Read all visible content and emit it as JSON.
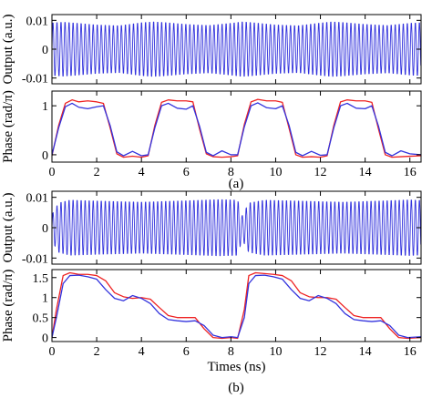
{
  "figure": {
    "captions": [
      "(a)",
      "(b)"
    ]
  },
  "chart_data": [
    {
      "type": "line",
      "panel": "(a)",
      "subplot": "output",
      "ylabel": "Output (a.u.)",
      "xlim": [
        0,
        16.5
      ],
      "ylim": [
        -0.012,
        0.012
      ],
      "yticks": [
        -0.01,
        0,
        0.01
      ],
      "ytick_labels": [
        "-0.01",
        "0",
        "0.01"
      ],
      "grid": false,
      "series": [
        {
          "color": "#3333dd",
          "waveform": "oscillation",
          "carrier_period_ns": 0.18,
          "amplitude_envelope": {
            "x": [
              0,
              0.5,
              1,
              2,
              3,
              4,
              4.5,
              5,
              6,
              7,
              8,
              8.5,
              9,
              10,
              11,
              12,
              12.5,
              13,
              14,
              15,
              16,
              16.5
            ],
            "y": [
              0.0095,
              0.0098,
              0.0095,
              0.0088,
              0.0085,
              0.0096,
              0.0099,
              0.0097,
              0.009,
              0.0086,
              0.0094,
              0.0099,
              0.0096,
              0.0088,
              0.0085,
              0.0095,
              0.0099,
              0.0097,
              0.009,
              0.0086,
              0.0094,
              0.0096
            ]
          }
        }
      ]
    },
    {
      "type": "line",
      "panel": "(a)",
      "subplot": "phase",
      "ylabel": "Phase (rad/π)",
      "xlim": [
        0,
        16.5
      ],
      "ylim": [
        -0.15,
        1.3
      ],
      "xticks": [
        0,
        2,
        4,
        6,
        8,
        10,
        12,
        14,
        16
      ],
      "yticks": [
        0,
        1
      ],
      "ytick_labels": [
        "0",
        "1"
      ],
      "grid": false,
      "series": [
        {
          "color": "#ee2222",
          "x": [
            0,
            0.3,
            0.6,
            0.9,
            1.2,
            1.6,
            2.0,
            2.3,
            2.6,
            2.9,
            3.2,
            3.6,
            4.0,
            4.3,
            4.6,
            4.9,
            5.2,
            5.6,
            6.0,
            6.3,
            6.6,
            6.9,
            7.2,
            7.6,
            8.0,
            8.3,
            8.6,
            8.9,
            9.2,
            9.6,
            10.0,
            10.3,
            10.6,
            10.9,
            11.2,
            11.6,
            12.0,
            12.3,
            12.6,
            12.9,
            13.2,
            13.6,
            14.0,
            14.3,
            14.6,
            14.9,
            15.2,
            15.6,
            16.0,
            16.5
          ],
          "y": [
            -0.02,
            0.6,
            1.05,
            1.12,
            1.08,
            1.1,
            1.08,
            1.05,
            0.55,
            0.02,
            -0.05,
            -0.03,
            -0.05,
            -0.02,
            0.6,
            1.07,
            1.12,
            1.1,
            1.1,
            1.08,
            0.52,
            0.02,
            -0.04,
            -0.05,
            -0.04,
            -0.02,
            0.62,
            1.08,
            1.13,
            1.1,
            1.1,
            1.07,
            0.54,
            0.0,
            -0.05,
            -0.04,
            -0.05,
            -0.02,
            0.6,
            1.08,
            1.12,
            1.1,
            1.1,
            1.07,
            0.52,
            0.0,
            -0.05,
            -0.04,
            -0.03,
            -0.02
          ]
        },
        {
          "color": "#3333dd",
          "x": [
            0,
            0.3,
            0.6,
            0.9,
            1.2,
            1.6,
            2.0,
            2.3,
            2.6,
            2.9,
            3.2,
            3.6,
            4.0,
            4.3,
            4.6,
            4.9,
            5.2,
            5.6,
            6.0,
            6.3,
            6.6,
            6.9,
            7.2,
            7.6,
            8.0,
            8.3,
            8.6,
            8.9,
            9.2,
            9.6,
            10.0,
            10.3,
            10.6,
            10.9,
            11.2,
            11.6,
            12.0,
            12.3,
            12.6,
            12.9,
            13.2,
            13.6,
            14.0,
            14.3,
            14.6,
            14.9,
            15.2,
            15.6,
            16.0,
            16.5
          ],
          "y": [
            0.0,
            0.55,
            0.98,
            1.05,
            0.97,
            0.94,
            0.98,
            1.0,
            0.6,
            0.06,
            -0.02,
            0.07,
            -0.02,
            0.0,
            0.55,
            1.0,
            1.05,
            0.95,
            0.93,
            1.0,
            0.58,
            0.05,
            -0.02,
            0.08,
            0.0,
            0.0,
            0.57,
            1.0,
            1.06,
            0.96,
            0.94,
            1.0,
            0.6,
            0.05,
            -0.02,
            0.07,
            -0.01,
            0.0,
            0.55,
            1.0,
            1.05,
            0.95,
            0.94,
            1.0,
            0.58,
            0.05,
            -0.02,
            0.08,
            0.02,
            0.0
          ]
        }
      ]
    },
    {
      "type": "line",
      "panel": "(b)",
      "subplot": "output",
      "ylabel": "Output (a.u.)",
      "xlim": [
        0,
        16.5
      ],
      "ylim": [
        -0.012,
        0.012
      ],
      "yticks": [
        -0.01,
        0,
        0.01
      ],
      "ytick_labels": [
        "-0.01",
        "0",
        "0.01"
      ],
      "grid": false,
      "series": [
        {
          "color": "#3333dd",
          "waveform": "oscillation",
          "carrier_period_ns": 0.18,
          "amplitude_envelope": {
            "x": [
              0,
              0.3,
              0.8,
              2,
              4,
              6,
              7.5,
              8.3,
              8.5,
              8.8,
              9.5,
              11,
              13,
              15,
              16,
              16.5
            ],
            "y": [
              0.0045,
              0.0085,
              0.0095,
              0.0092,
              0.0088,
              0.0093,
              0.0097,
              0.0095,
              0.004,
              0.0085,
              0.0095,
              0.0092,
              0.0088,
              0.0093,
              0.0096,
              0.0094
            ]
          }
        }
      ]
    },
    {
      "type": "line",
      "panel": "(b)",
      "subplot": "phase",
      "ylabel": "Phase (rad/π)",
      "xlabel": "Times (ns)",
      "xlim": [
        0,
        16.5
      ],
      "ylim": [
        -0.1,
        1.7
      ],
      "xticks": [
        0,
        2,
        4,
        6,
        8,
        10,
        12,
        14,
        16
      ],
      "yticks": [
        0,
        0.5,
        1,
        1.5
      ],
      "ytick_labels": [
        "0",
        "0.5",
        "1",
        "1.5"
      ],
      "grid": false,
      "series": [
        {
          "color": "#ee2222",
          "x": [
            0,
            0.2,
            0.5,
            0.8,
            1.2,
            1.6,
            2.0,
            2.4,
            2.8,
            3.2,
            3.6,
            4.0,
            4.4,
            4.8,
            5.2,
            5.6,
            6.0,
            6.4,
            6.8,
            7.2,
            7.6,
            8.0,
            8.3,
            8.6,
            8.8,
            9.1,
            9.5,
            9.9,
            10.3,
            10.7,
            11.1,
            11.5,
            11.9,
            12.3,
            12.7,
            13.1,
            13.5,
            13.9,
            14.3,
            14.7,
            15.1,
            15.5,
            15.9,
            16.5
          ],
          "y": [
            0.0,
            0.7,
            1.55,
            1.62,
            1.58,
            1.58,
            1.55,
            1.42,
            1.12,
            1.02,
            0.98,
            1.0,
            0.96,
            0.75,
            0.55,
            0.5,
            0.5,
            0.5,
            0.22,
            0.0,
            -0.02,
            0.0,
            -0.02,
            0.7,
            1.55,
            1.62,
            1.6,
            1.58,
            1.55,
            1.42,
            1.12,
            1.02,
            1.0,
            1.0,
            0.96,
            0.75,
            0.55,
            0.5,
            0.5,
            0.5,
            0.22,
            0.0,
            -0.02,
            0.0
          ]
        },
        {
          "color": "#3333dd",
          "x": [
            0,
            0.2,
            0.5,
            0.8,
            1.2,
            1.6,
            2.0,
            2.4,
            2.8,
            3.2,
            3.6,
            4.0,
            4.4,
            4.8,
            5.2,
            5.6,
            6.0,
            6.4,
            6.8,
            7.2,
            7.6,
            8.0,
            8.3,
            8.6,
            8.8,
            9.1,
            9.5,
            9.9,
            10.3,
            10.7,
            11.1,
            11.5,
            11.9,
            12.3,
            12.7,
            13.1,
            13.5,
            13.9,
            14.3,
            14.7,
            15.1,
            15.5,
            15.9,
            16.5
          ],
          "y": [
            0.0,
            0.5,
            1.35,
            1.55,
            1.56,
            1.52,
            1.46,
            1.2,
            0.98,
            0.92,
            1.05,
            0.98,
            0.85,
            0.6,
            0.45,
            0.42,
            0.4,
            0.42,
            0.3,
            0.06,
            0.0,
            0.02,
            0.0,
            0.5,
            1.35,
            1.55,
            1.56,
            1.52,
            1.46,
            1.2,
            0.98,
            0.92,
            1.05,
            0.98,
            0.85,
            0.6,
            0.45,
            0.42,
            0.4,
            0.42,
            0.3,
            0.06,
            0.0,
            0.02
          ]
        }
      ]
    }
  ]
}
